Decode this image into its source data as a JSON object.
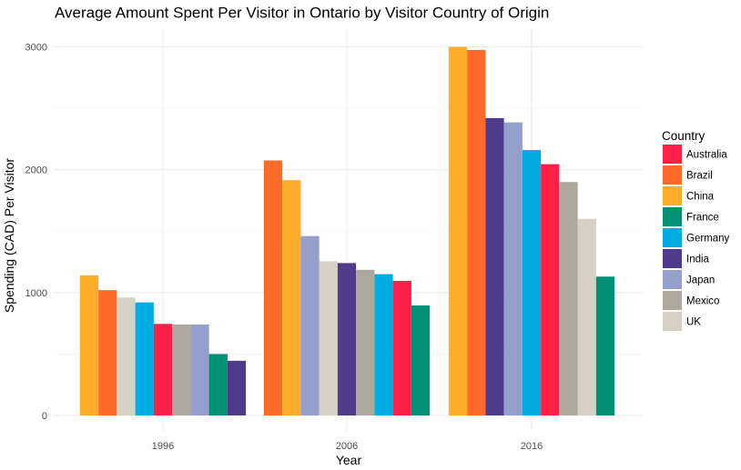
{
  "chart_data": {
    "type": "bar",
    "title": "Average Amount Spent Per Visitor in Ontario by Visitor Country of Origin",
    "xlabel": "Year",
    "ylabel": "Spending (CAD) Per Visitor",
    "ylim": [
      0,
      3000
    ],
    "yticks": [
      0,
      1000,
      2000,
      3000
    ],
    "grid": true,
    "legend_title": "Country",
    "legend_position": "right",
    "legend": [
      {
        "name": "Australia",
        "color": "#FF1F47"
      },
      {
        "name": "Brazil",
        "color": "#FF6A2A"
      },
      {
        "name": "China",
        "color": "#FDAD2A"
      },
      {
        "name": "France",
        "color": "#009174"
      },
      {
        "name": "Germany",
        "color": "#00ADE2"
      },
      {
        "name": "India",
        "color": "#4E3C8A"
      },
      {
        "name": "Japan",
        "color": "#959FCB"
      },
      {
        "name": "Mexico",
        "color": "#ADA89D"
      },
      {
        "name": "UK",
        "color": "#D5D1C4"
      }
    ],
    "groups": [
      {
        "category": "1996",
        "bars": [
          {
            "country": "China",
            "value": 1140
          },
          {
            "country": "Brazil",
            "value": 1020
          },
          {
            "country": "UK",
            "value": 960
          },
          {
            "country": "Germany",
            "value": 920
          },
          {
            "country": "Australia",
            "value": 745
          },
          {
            "country": "Mexico",
            "value": 740
          },
          {
            "country": "Japan",
            "value": 740
          },
          {
            "country": "France",
            "value": 500
          },
          {
            "country": "India",
            "value": 445
          }
        ]
      },
      {
        "category": "2006",
        "bars": [
          {
            "country": "Brazil",
            "value": 2075
          },
          {
            "country": "China",
            "value": 1915
          },
          {
            "country": "Japan",
            "value": 1460
          },
          {
            "country": "UK",
            "value": 1255
          },
          {
            "country": "India",
            "value": 1240
          },
          {
            "country": "Mexico",
            "value": 1185
          },
          {
            "country": "Germany",
            "value": 1150
          },
          {
            "country": "Australia",
            "value": 1095
          },
          {
            "country": "France",
            "value": 895
          }
        ]
      },
      {
        "category": "2016",
        "bars": [
          {
            "country": "China",
            "value": 3000
          },
          {
            "country": "Brazil",
            "value": 2975
          },
          {
            "country": "India",
            "value": 2420
          },
          {
            "country": "Japan",
            "value": 2385
          },
          {
            "country": "Germany",
            "value": 2160
          },
          {
            "country": "Australia",
            "value": 2045
          },
          {
            "country": "Mexico",
            "value": 1900
          },
          {
            "country": "UK",
            "value": 1600
          },
          {
            "country": "France",
            "value": 1130
          }
        ]
      }
    ]
  }
}
